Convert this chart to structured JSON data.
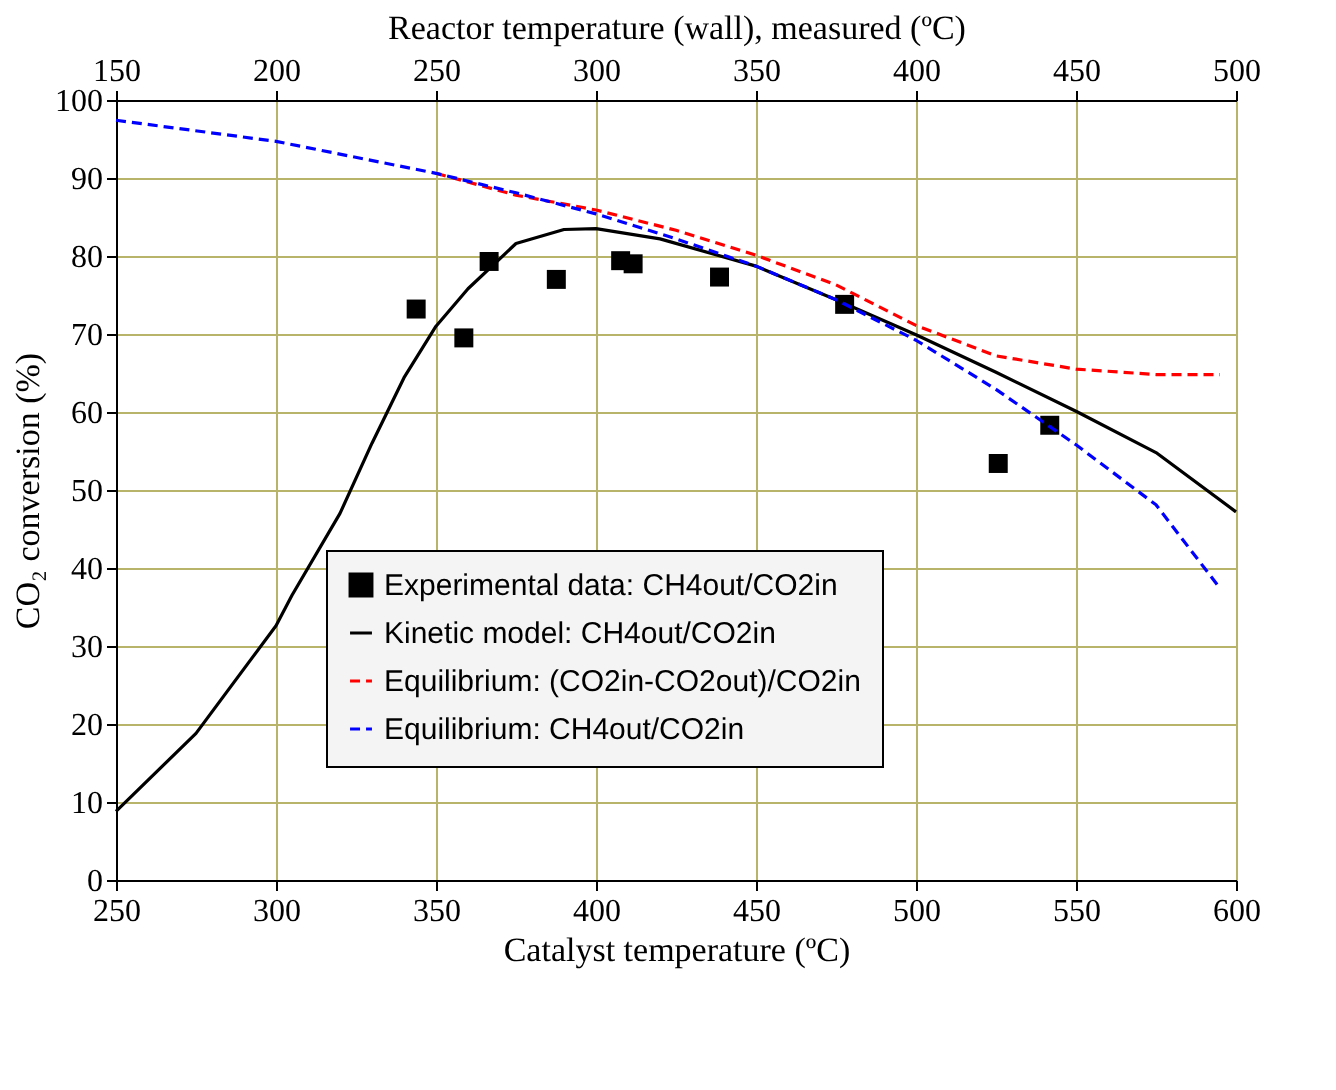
{
  "chart_data": {
    "type": "line",
    "xlabel": "Catalyst temperature (ºC)",
    "ylabel": "CO₂ conversion (%)",
    "x2label": "Reactor temperature (wall), measured (ºC)",
    "xlim": [
      250,
      600
    ],
    "xticks": [
      250,
      300,
      350,
      400,
      450,
      500,
      550,
      600
    ],
    "x2lim": [
      150,
      500
    ],
    "x2ticks": [
      150,
      200,
      250,
      300,
      350,
      400,
      450,
      500
    ],
    "ylim": [
      0,
      100
    ],
    "yticks": [
      0,
      10,
      20,
      30,
      40,
      50,
      60,
      70,
      80,
      90,
      100
    ],
    "grid": true,
    "legend": "bottom",
    "series": [
      {
        "name": "Experimental data: CH4out/CO2in",
        "type": "scatter",
        "marker": "square",
        "color": "#000000",
        "x": [
          343.8,
          358.7,
          366.6,
          387.6,
          407.7,
          411.6,
          438.6,
          477.7,
          525.7,
          541.8
        ],
        "values": [
          73.2,
          69.5,
          79.3,
          77.0,
          79.4,
          79.0,
          77.3,
          73.8,
          53.4,
          58.3
        ]
      },
      {
        "name": "Kinetic model: CH4out/CO2in",
        "line_style": "solid",
        "color": "#000000",
        "x": [
          250,
          275,
          300,
          305,
          320,
          330,
          340,
          350,
          360,
          375,
          390,
          400,
          420,
          450,
          475,
          500,
          525,
          550,
          575,
          600
        ],
        "values": [
          8.8,
          18.8,
          32.6,
          36.5,
          47,
          56,
          64.4,
          71.0,
          75.8,
          81.6,
          83.4,
          83.5,
          82.2,
          78.7,
          74.4,
          69.9,
          65.1,
          60.1,
          54.8,
          47.2
        ]
      },
      {
        "name": "Equilibrium: (CO2in-CO2out)/CO2in",
        "line_style": "dashed",
        "color": "#ff0000",
        "x": [
          350,
          375,
          400,
          425,
          450,
          475,
          500,
          525,
          550,
          575,
          595
        ],
        "values": [
          90.6,
          87.8,
          85.9,
          83.3,
          80.1,
          76.3,
          71.1,
          67.2,
          65.5,
          64.8,
          64.8
        ]
      },
      {
        "name": "Equilibrium: CH4out/CO2in",
        "line_style": "dashed",
        "color": "#0000ff",
        "x": [
          250,
          300,
          350,
          375,
          400,
          425,
          450,
          475,
          500,
          525,
          550,
          575,
          595
        ],
        "values": [
          97.4,
          94.7,
          90.6,
          88.1,
          85.4,
          82.2,
          78.7,
          74.4,
          69.2,
          62.9,
          55.8,
          48.1,
          37.4
        ]
      }
    ]
  }
}
